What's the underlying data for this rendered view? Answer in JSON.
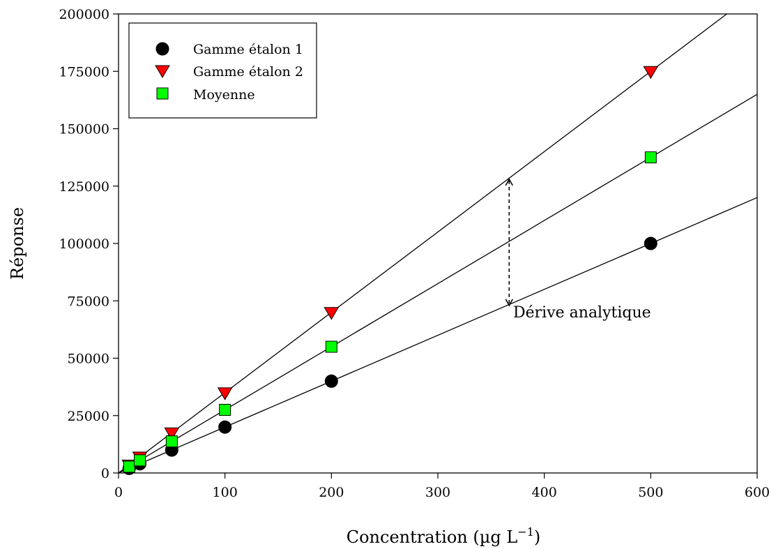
{
  "chart_data": {
    "type": "scatter",
    "xlabel": "Concentration (µg L",
    "xlabel_sup": "−1",
    "xlabel_close": ")",
    "ylabel": "Réponse",
    "xlim": [
      0,
      600
    ],
    "ylim": [
      0,
      200000
    ],
    "x_ticks": [
      0,
      100,
      200,
      300,
      400,
      500,
      600
    ],
    "y_ticks": [
      0,
      25000,
      50000,
      75000,
      100000,
      125000,
      150000,
      175000,
      200000
    ],
    "x_tick_labels": [
      "0",
      "100",
      "200",
      "300",
      "400",
      "500",
      "600"
    ],
    "y_tick_labels": [
      "0",
      "25000",
      "50000",
      "75000",
      "100000",
      "125000",
      "150000",
      "175000",
      "200000"
    ],
    "grid": false,
    "legend_position": "top-left",
    "series": [
      {
        "name": "Gamme étalon 1",
        "marker": "circle",
        "color": "#000000",
        "x": [
          10,
          20,
          50,
          100,
          200,
          500
        ],
        "y": [
          2000,
          4000,
          10000,
          20000,
          40000,
          100000
        ],
        "fit_slope": 200
      },
      {
        "name": "Gamme étalon 2",
        "marker": "triangle-down",
        "color": "#ff0000",
        "x": [
          10,
          20,
          50,
          100,
          200,
          500
        ],
        "y": [
          3500,
          7000,
          17500,
          35000,
          70000,
          175000
        ],
        "fit_slope": 350
      },
      {
        "name": "Moyenne",
        "marker": "square",
        "color": "#00ff00",
        "x": [
          10,
          20,
          50,
          100,
          200,
          500
        ],
        "y": [
          2750,
          5500,
          13750,
          27500,
          55000,
          137500
        ],
        "fit_slope": 275
      }
    ],
    "annotation": {
      "text": "Dérive analytique",
      "arrow_x": 367,
      "arrow_y_from": 73000,
      "arrow_y_to": 128000
    }
  }
}
